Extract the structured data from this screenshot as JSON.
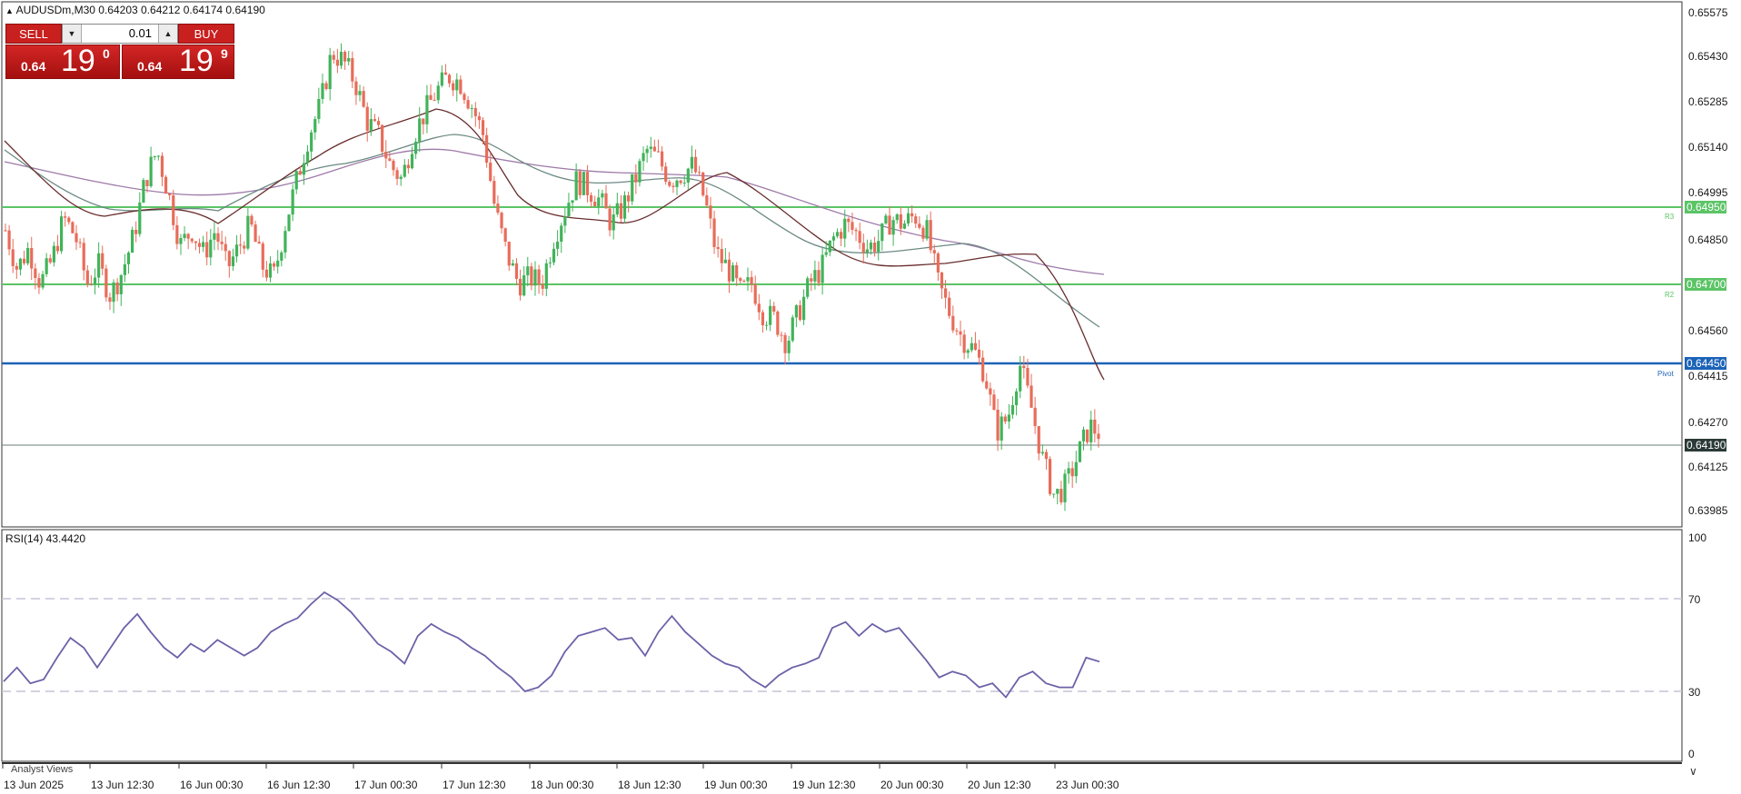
{
  "header": {
    "symbol_title": "AUDUSDm,M30",
    "ohlc": "0.64203 0.64212 0.64174 0.64190"
  },
  "trade_panel": {
    "sell_label": "SELL",
    "buy_label": "BUY",
    "lot": "0.01",
    "sell_price": {
      "small": "0.64",
      "big": "19",
      "sup": "0"
    },
    "buy_price": {
      "small": "0.64",
      "big": "19",
      "sup": "9"
    }
  },
  "price_axis": {
    "ticks": [
      "0.65575",
      "0.65430",
      "0.65285",
      "0.65140",
      "0.64995",
      "0.64850",
      "0.64560",
      "0.64415",
      "0.64270",
      "0.64125",
      "0.63985"
    ]
  },
  "levels": {
    "r3": {
      "value": "0.64950",
      "tag": "R3",
      "color": "#5cc466"
    },
    "r2": {
      "value": "0.64700",
      "tag": "R2",
      "color": "#5cc466"
    },
    "pivot": {
      "value": "0.64450",
      "tag": "Pivot",
      "color": "#1c63b7"
    },
    "current": {
      "value": "0.64190",
      "color": "#2b3a37"
    }
  },
  "rsi": {
    "title": "RSI(14) 43.4420",
    "ticks": [
      "100",
      "70",
      "30",
      "0"
    ]
  },
  "time_axis": {
    "labels": [
      "13 Jun 2025",
      "13 Jun 12:30",
      "16 Jun 00:30",
      "16 Jun 12:30",
      "17 Jun 00:30",
      "17 Jun 12:30",
      "18 Jun 00:30",
      "18 Jun 12:30",
      "19 Jun 00:30",
      "19 Jun 12:30",
      "20 Jun 00:30",
      "20 Jun 12:30",
      "23 Jun 00:30"
    ]
  },
  "bottom": {
    "analyst_views": "Analyst Views"
  },
  "chart_data": {
    "type": "candlestick",
    "symbol": "AUDUSDm",
    "timeframe": "M30",
    "ylim": [
      0.6394,
      0.6562
    ],
    "levels": {
      "R3": 0.6495,
      "R2": 0.647,
      "Pivot": 0.6445,
      "Current": 0.6419
    },
    "close_path": [
      [
        0,
        0.6488
      ],
      [
        5,
        0.6475
      ],
      [
        10,
        0.6482
      ],
      [
        15,
        0.647
      ],
      [
        20,
        0.6478
      ],
      [
        25,
        0.6492
      ],
      [
        30,
        0.6486
      ],
      [
        35,
        0.647
      ],
      [
        40,
        0.6476
      ],
      [
        45,
        0.6466
      ],
      [
        50,
        0.6474
      ],
      [
        55,
        0.6486
      ],
      [
        60,
        0.6505
      ],
      [
        65,
        0.6515
      ],
      [
        70,
        0.65
      ],
      [
        75,
        0.6483
      ],
      [
        80,
        0.6488
      ],
      [
        85,
        0.648
      ],
      [
        90,
        0.6488
      ],
      [
        95,
        0.6475
      ],
      [
        100,
        0.6482
      ],
      [
        105,
        0.649
      ],
      [
        110,
        0.6476
      ],
      [
        115,
        0.6472
      ],
      [
        120,
        0.649
      ],
      [
        125,
        0.6505
      ],
      [
        130,
        0.652
      ],
      [
        135,
        0.653
      ],
      [
        140,
        0.6548
      ],
      [
        145,
        0.6545
      ],
      [
        150,
        0.6538
      ],
      [
        155,
        0.6525
      ],
      [
        160,
        0.652
      ],
      [
        165,
        0.651
      ],
      [
        170,
        0.6505
      ],
      [
        175,
        0.652
      ],
      [
        180,
        0.6528
      ],
      [
        185,
        0.6535
      ],
      [
        190,
        0.654
      ],
      [
        195,
        0.6538
      ],
      [
        200,
        0.653
      ],
      [
        205,
        0.652
      ],
      [
        210,
        0.6495
      ],
      [
        215,
        0.648
      ],
      [
        220,
        0.647
      ],
      [
        225,
        0.6472
      ],
      [
        230,
        0.647
      ],
      [
        235,
        0.6485
      ],
      [
        240,
        0.6495
      ],
      [
        245,
        0.6505
      ],
      [
        250,
        0.6502
      ],
      [
        255,
        0.6498
      ],
      [
        260,
        0.649
      ],
      [
        265,
        0.6496
      ],
      [
        270,
        0.6505
      ],
      [
        275,
        0.6515
      ],
      [
        280,
        0.6512
      ],
      [
        285,
        0.6505
      ],
      [
        290,
        0.6507
      ],
      [
        295,
        0.651
      ],
      [
        300,
        0.6498
      ],
      [
        305,
        0.648
      ],
      [
        310,
        0.6475
      ],
      [
        315,
        0.6467
      ],
      [
        320,
        0.647
      ],
      [
        325,
        0.646
      ],
      [
        330,
        0.6458
      ],
      [
        335,
        0.645
      ],
      [
        340,
        0.646
      ],
      [
        345,
        0.647
      ],
      [
        350,
        0.6475
      ],
      [
        355,
        0.6485
      ],
      [
        360,
        0.649
      ],
      [
        365,
        0.6487
      ],
      [
        370,
        0.6482
      ],
      [
        375,
        0.6485
      ],
      [
        380,
        0.6492
      ],
      [
        385,
        0.649
      ],
      [
        390,
        0.6493
      ],
      [
        395,
        0.6488
      ],
      [
        400,
        0.647
      ],
      [
        405,
        0.646
      ],
      [
        410,
        0.6452
      ],
      [
        415,
        0.6448
      ],
      [
        420,
        0.644
      ],
      [
        425,
        0.642
      ],
      [
        430,
        0.6425
      ],
      [
        435,
        0.6443
      ],
      [
        440,
        0.6428
      ],
      [
        445,
        0.641
      ],
      [
        450,
        0.6398
      ],
      [
        455,
        0.6402
      ],
      [
        460,
        0.6412
      ],
      [
        465,
        0.6422
      ],
      [
        470,
        0.6419
      ]
    ],
    "rsi_series": [
      [
        0,
        33
      ],
      [
        5,
        40
      ],
      [
        10,
        32
      ],
      [
        15,
        34
      ],
      [
        20,
        45
      ],
      [
        25,
        55
      ],
      [
        30,
        50
      ],
      [
        35,
        40
      ],
      [
        40,
        50
      ],
      [
        45,
        60
      ],
      [
        50,
        67
      ],
      [
        55,
        58
      ],
      [
        60,
        50
      ],
      [
        65,
        45
      ],
      [
        70,
        52
      ],
      [
        75,
        48
      ],
      [
        80,
        54
      ],
      [
        85,
        50
      ],
      [
        90,
        46
      ],
      [
        95,
        50
      ],
      [
        100,
        58
      ],
      [
        105,
        62
      ],
      [
        110,
        65
      ],
      [
        115,
        72
      ],
      [
        120,
        78
      ],
      [
        125,
        74
      ],
      [
        130,
        68
      ],
      [
        135,
        60
      ],
      [
        140,
        52
      ],
      [
        145,
        48
      ],
      [
        150,
        42
      ],
      [
        155,
        56
      ],
      [
        160,
        62
      ],
      [
        165,
        58
      ],
      [
        170,
        55
      ],
      [
        175,
        50
      ],
      [
        180,
        46
      ],
      [
        185,
        40
      ],
      [
        190,
        35
      ],
      [
        195,
        28
      ],
      [
        200,
        30
      ],
      [
        205,
        36
      ],
      [
        210,
        48
      ],
      [
        215,
        56
      ],
      [
        220,
        58
      ],
      [
        225,
        60
      ],
      [
        230,
        54
      ],
      [
        235,
        55
      ],
      [
        240,
        46
      ],
      [
        245,
        58
      ],
      [
        250,
        66
      ],
      [
        255,
        58
      ],
      [
        260,
        52
      ],
      [
        265,
        46
      ],
      [
        270,
        42
      ],
      [
        275,
        40
      ],
      [
        280,
        34
      ],
      [
        285,
        30
      ],
      [
        290,
        36
      ],
      [
        295,
        40
      ],
      [
        300,
        42
      ],
      [
        305,
        45
      ],
      [
        310,
        60
      ],
      [
        315,
        63
      ],
      [
        320,
        56
      ],
      [
        325,
        62
      ],
      [
        330,
        58
      ],
      [
        335,
        60
      ],
      [
        340,
        52
      ],
      [
        345,
        44
      ],
      [
        350,
        35
      ],
      [
        355,
        38
      ],
      [
        360,
        36
      ],
      [
        365,
        30
      ],
      [
        370,
        32
      ],
      [
        375,
        25
      ],
      [
        380,
        35
      ],
      [
        385,
        38
      ],
      [
        390,
        32
      ],
      [
        395,
        30
      ],
      [
        400,
        30
      ],
      [
        405,
        45
      ],
      [
        410,
        43
      ]
    ]
  }
}
